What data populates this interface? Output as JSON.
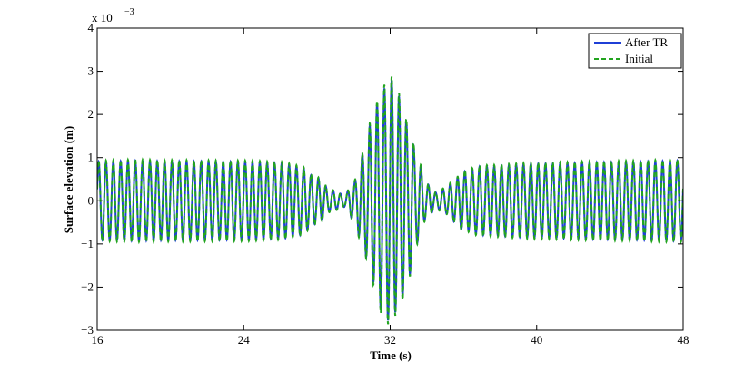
{
  "chart_data": {
    "type": "line",
    "title": "",
    "xlabel": "Time (s)",
    "ylabel": "Surface elevation (m)",
    "y_exponent_label": "x 10",
    "y_exponent_power": "−3",
    "xlim": [
      16,
      48
    ],
    "ylim": [
      -3,
      4
    ],
    "x_ticks": [
      16,
      24,
      32,
      40,
      48
    ],
    "y_ticks": [
      -3,
      -2,
      -1,
      0,
      1,
      2,
      3,
      4
    ],
    "x_tick_labels": [
      "16",
      "24",
      "32",
      "40",
      "48"
    ],
    "y_tick_labels": [
      "−3",
      "−2",
      "−1",
      "0",
      "1",
      "2",
      "3",
      "4"
    ],
    "grid": false,
    "legend_position": "top-right",
    "carrier_frequency_hz": 2.5,
    "envelope_points": {
      "t": [
        16,
        18,
        20,
        24,
        26,
        27,
        28,
        28.8,
        29.5,
        30,
        30.5,
        31,
        31.5,
        32,
        32.5,
        33,
        33.5,
        34,
        34.5,
        35,
        35.5,
        36,
        37,
        40,
        44,
        48
      ],
      "a": [
        0.93,
        0.95,
        0.94,
        0.93,
        0.9,
        0.82,
        0.55,
        0.25,
        0.15,
        0.45,
        1.1,
        1.9,
        2.6,
        2.9,
        2.5,
        1.8,
        1.0,
        0.4,
        0.2,
        0.3,
        0.5,
        0.7,
        0.82,
        0.88,
        0.92,
        0.95
      ]
    },
    "series": [
      {
        "name": "After TR",
        "color": "#1f3fd6",
        "dash": "solid",
        "amplitude_scale": 0.97
      },
      {
        "name": "Initial",
        "color": "#22a41f",
        "dash": "dashed",
        "amplitude_scale": 1.0
      }
    ]
  }
}
